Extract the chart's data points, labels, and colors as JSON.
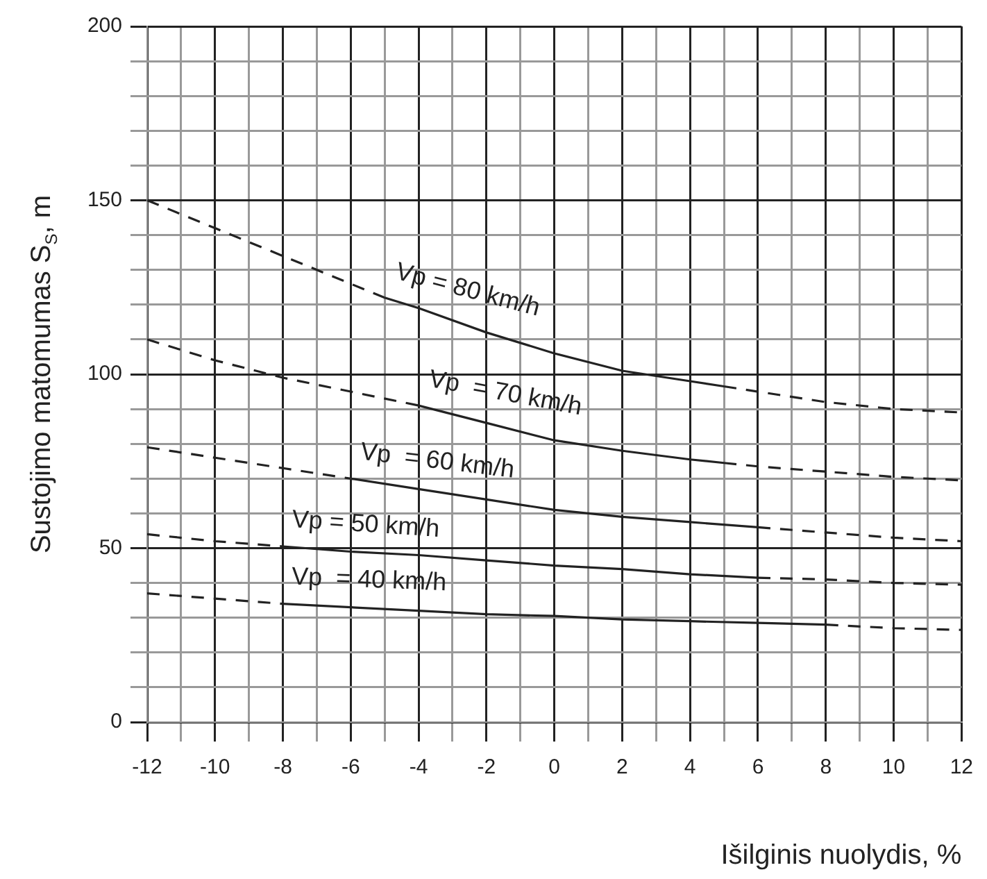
{
  "chart_data": {
    "type": "line",
    "xlabel": "Išilginis nuolydis, %",
    "ylabel": "Sustojimo matomumas S$_{S}$, m",
    "xlim": [
      -12,
      12
    ],
    "ylim": [
      0,
      200
    ],
    "xticks": [
      -12,
      {
        "value": -11,
        "label": null
      },
      -10,
      {
        "value": -9,
        "label": null
      },
      -8,
      {
        "value": -7,
        "label": null
      },
      -6,
      {
        "value": -5,
        "label": null
      },
      -4,
      {
        "value": -3,
        "label": null
      },
      -2,
      {
        "value": -1,
        "label": null
      },
      0,
      {
        "value": 1,
        "label": null
      },
      2,
      {
        "value": 3,
        "label": null
      },
      4,
      {
        "value": 5,
        "label": null
      },
      6,
      {
        "value": 7,
        "label": null
      },
      8,
      {
        "value": 9,
        "label": null
      },
      10,
      {
        "value": 11,
        "label": null
      },
      12
    ],
    "yticks": [
      0,
      {
        "value": 10,
        "label": null
      },
      {
        "value": 20,
        "label": null
      },
      {
        "value": 30,
        "label": null
      },
      {
        "value": 40,
        "label": null
      },
      50,
      {
        "value": 60,
        "label": null
      },
      {
        "value": 70,
        "label": null
      },
      {
        "value": 80,
        "label": null
      },
      {
        "value": 90,
        "label": null
      },
      100,
      {
        "value": 110,
        "label": null
      },
      {
        "value": 120,
        "label": null
      },
      {
        "value": 130,
        "label": null
      },
      {
        "value": 140,
        "label": null
      },
      150,
      {
        "value": 160,
        "label": null
      },
      {
        "value": 170,
        "label": null
      },
      {
        "value": 180,
        "label": null
      },
      {
        "value": 190,
        "label": null
      },
      200
    ],
    "grid": true,
    "legend": false,
    "marker": "none",
    "line_style": "solid",
    "series": [
      {
        "color": "#222222",
        "line_style": "dashed",
        "x": [
          -12,
          -10,
          -8,
          -6,
          -5
        ],
        "values": [
          150,
          142,
          134,
          126,
          122
        ]
      },
      {
        "name": "Vp = 80 km/h",
        "color": "#222222",
        "x": [
          -5,
          -4,
          -2,
          0,
          2,
          4,
          5
        ],
        "values": [
          122,
          119,
          112,
          106,
          101,
          98,
          96.5
        ]
      },
      {
        "color": "#222222",
        "line_style": "dashed",
        "x": [
          5,
          6,
          8,
          10,
          12
        ],
        "values": [
          96.5,
          95,
          92,
          90,
          89
        ]
      },
      {
        "color": "#222222",
        "line_style": "dashed",
        "x": [
          -12,
          -10,
          -8,
          -6,
          -4
        ],
        "values": [
          110,
          104,
          99,
          95,
          91
        ]
      },
      {
        "name": "Vp  = 70 km/h",
        "color": "#222222",
        "x": [
          -4,
          -2,
          0,
          2,
          4,
          5
        ],
        "values": [
          91,
          86,
          81,
          78,
          75.5,
          74.5
        ]
      },
      {
        "color": "#222222",
        "line_style": "dashed",
        "x": [
          5,
          6,
          8,
          10,
          12
        ],
        "values": [
          74.5,
          73.5,
          72,
          70.5,
          69.5
        ]
      },
      {
        "color": "#222222",
        "line_style": "dashed",
        "x": [
          -12,
          -10,
          -8,
          -6
        ],
        "values": [
          79,
          76,
          73,
          70
        ]
      },
      {
        "name": "Vp  = 60 km/h",
        "color": "#222222",
        "x": [
          -6,
          -4,
          -2,
          0,
          2,
          4,
          6
        ],
        "values": [
          70,
          67,
          64,
          61,
          59,
          57.5,
          56
        ]
      },
      {
        "color": "#222222",
        "line_style": "dashed",
        "x": [
          6,
          8,
          10,
          12
        ],
        "values": [
          56,
          54.5,
          53,
          52
        ]
      },
      {
        "color": "#222222",
        "line_style": "dashed",
        "x": [
          -12,
          -10,
          -8
        ],
        "values": [
          54,
          52,
          50.5
        ]
      },
      {
        "name": "Vp = 50 km/h",
        "color": "#222222",
        "x": [
          -8,
          -6,
          -4,
          -2,
          0,
          2,
          4,
          6
        ],
        "values": [
          50.5,
          49,
          48,
          46.5,
          45,
          44,
          42.5,
          41.5
        ]
      },
      {
        "color": "#222222",
        "line_style": "dashed",
        "x": [
          6,
          8,
          10,
          12
        ],
        "values": [
          41.5,
          41,
          40,
          39.5
        ]
      },
      {
        "color": "#222222",
        "line_style": "dashed",
        "x": [
          -12,
          -10,
          -8
        ],
        "values": [
          37,
          35.5,
          34
        ]
      },
      {
        "name": "Vp  = 40 km/h",
        "color": "#222222",
        "x": [
          -8,
          -6,
          -4,
          -2,
          0,
          2,
          4,
          6,
          8
        ],
        "values": [
          34,
          33,
          32,
          31,
          30.5,
          29.5,
          29,
          28.5,
          28
        ]
      },
      {
        "color": "#222222",
        "line_style": "dashed",
        "x": [
          8,
          10,
          12
        ],
        "values": [
          28,
          27,
          26.5
        ]
      }
    ]
  }
}
